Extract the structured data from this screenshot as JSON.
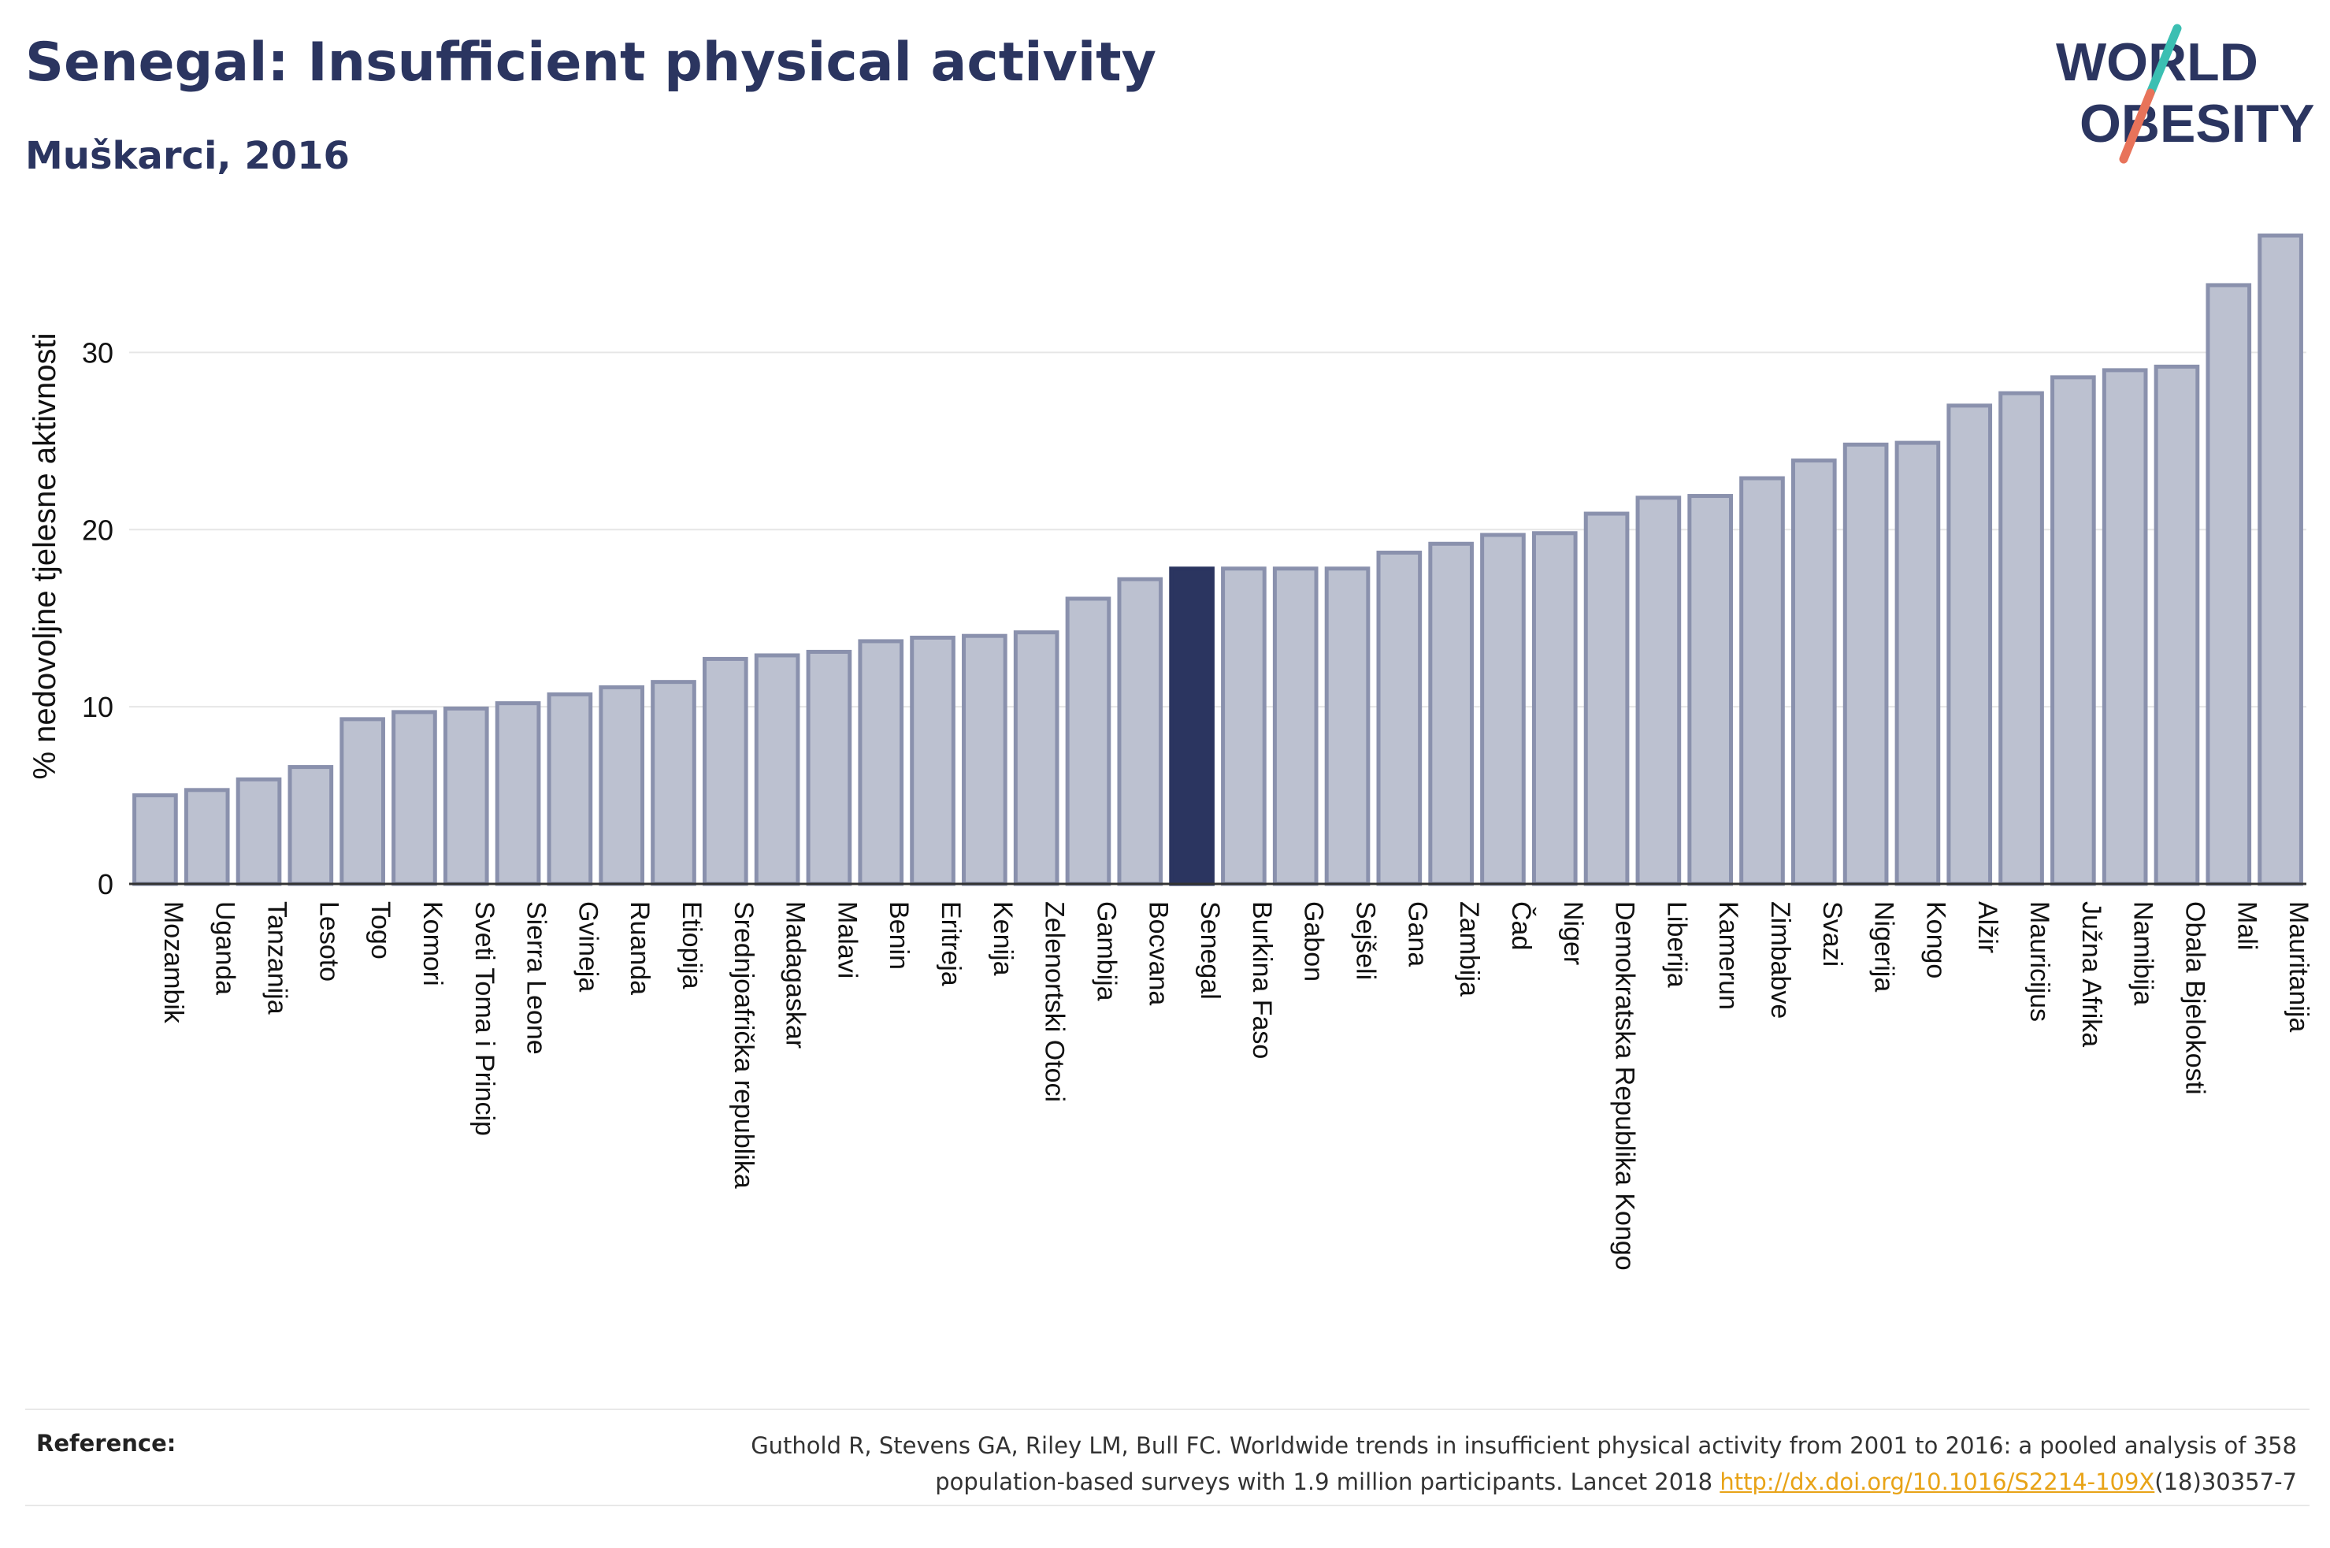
{
  "title": "Senegal: Insufficient physical activity",
  "subtitle": "Muškarci, 2016",
  "logo": {
    "line1": "WORLD",
    "line2": "OBESITY",
    "colors": {
      "text": "#2b3560",
      "slash_top": "#3bbfb2",
      "slash_bottom": "#e8735a"
    }
  },
  "colors": {
    "bar": "#bcc1d0",
    "bar_stroke": "#8a91ad",
    "highlight": "#2b3560",
    "grid": "#e6e6e6",
    "axis": "#333333"
  },
  "chart_data": {
    "type": "bar",
    "ylabel": "% nedovoljne tjelesne aktivnosti",
    "ylim": [
      0,
      37
    ],
    "yticks": [
      0,
      10,
      20,
      30
    ],
    "highlight": "Senegal",
    "categories": [
      "Mozambik",
      "Uganda",
      "Tanzanija",
      "Lesoto",
      "Togo",
      "Komori",
      "Sveti Toma i Princip",
      "Sierra Leone",
      "Gvineja",
      "Ruanda",
      "Etiopija",
      "Srednjoafrička republika",
      "Madagaskar",
      "Malavi",
      "Benin",
      "Eritreja",
      "Kenija",
      "Zelenortski Otoci",
      "Gambija",
      "Bocvana",
      "Senegal",
      "Burkina Faso",
      "Gabon",
      "Sejšeli",
      "Gana",
      "Zambija",
      "Čad",
      "Niger",
      "Demokratska Republika Kongo",
      "Liberija",
      "Kamerun",
      "Zimbabve",
      "Svazi",
      "Nigerija",
      "Kongo",
      "Alžir",
      "Mauricijus",
      "Južna Afrika",
      "Namibija",
      "Obala Bjelokosti",
      "Mali",
      "Mauritanija"
    ],
    "values": [
      5.0,
      5.3,
      5.9,
      6.6,
      9.3,
      9.7,
      9.9,
      10.2,
      10.7,
      11.1,
      11.4,
      12.7,
      12.9,
      13.1,
      13.7,
      13.9,
      14.0,
      14.2,
      16.1,
      17.2,
      17.8,
      17.8,
      17.8,
      17.8,
      18.7,
      19.2,
      19.7,
      19.8,
      20.9,
      21.8,
      21.9,
      22.9,
      23.9,
      24.8,
      24.9,
      27.0,
      27.7,
      28.6,
      29.0,
      29.2,
      33.8,
      36.6
    ]
  },
  "reference": {
    "label": "Reference:",
    "text_line1": "Guthold R, Stevens GA, Riley LM, Bull FC. Worldwide trends in insufficient physical activity from 2001 to 2016: a pooled analysis of 358",
    "text_line2": "population-based surveys with 1.9 million participants. Lancet 2018 ",
    "link": "http://dx.doi.org/10.1016/S2214-109X",
    "suffix": "(18)30357-7"
  }
}
